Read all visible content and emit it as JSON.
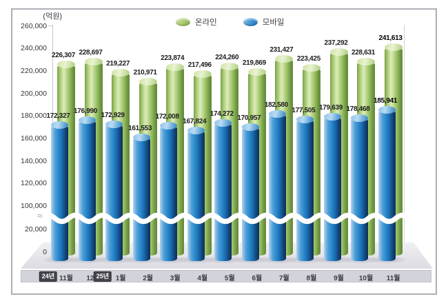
{
  "chart_data": {
    "type": "bar",
    "title": "",
    "ylabel": "(억원)",
    "categories": [
      "24년 11월",
      "12월",
      "25년 1월",
      "2월",
      "3월",
      "4월",
      "5월",
      "6월",
      "7월",
      "8월",
      "9월",
      "10월",
      "11월"
    ],
    "month_labels": [
      "11월",
      "12월",
      "1월",
      "2월",
      "3월",
      "4월",
      "5월",
      "6월",
      "7월",
      "8월",
      "9월",
      "10월",
      "11월"
    ],
    "year_boxes": [
      {
        "label": "24년",
        "index": 0
      },
      {
        "label": "25년",
        "index": 2
      }
    ],
    "series": [
      {
        "name": "온라인",
        "color": "#9fc36b",
        "values": [
          226307,
          228697,
          219227,
          210971,
          223874,
          217496,
          224260,
          219869,
          231427,
          223425,
          237292,
          228631,
          241613
        ]
      },
      {
        "name": "모바일",
        "color": "#2f8ed2",
        "values": [
          172327,
          176990,
          172929,
          161553,
          172008,
          167824,
          174272,
          170957,
          182580,
          177505,
          179639,
          178468,
          185941
        ]
      }
    ],
    "y_ticks": [
      260000,
      240000,
      220000,
      200000,
      180000,
      160000,
      140000,
      120000,
      100000,
      20000,
      0
    ],
    "ylim": [
      0,
      260000
    ],
    "axis_break": {
      "enabled": true,
      "between": [
        20000,
        100000
      ]
    },
    "legend_position": "top",
    "grid": false,
    "emphasized_last_category": true
  },
  "legend": {
    "online_label": "온라인",
    "mobile_label": "모바일"
  }
}
